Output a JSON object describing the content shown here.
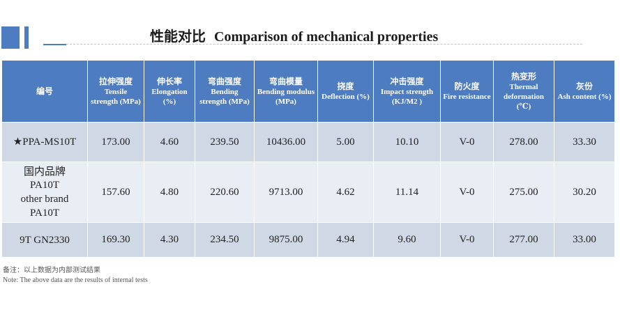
{
  "title": {
    "zh": "性能对比",
    "en": "Comparison of mechanical properties"
  },
  "table": {
    "headers": [
      {
        "zh": "编号",
        "en": ""
      },
      {
        "zh": "拉伸强度",
        "en": "Tensile strength (MPa)"
      },
      {
        "zh": "伸长率",
        "en": "Elongation (%)"
      },
      {
        "zh": "弯曲强度",
        "en": "Bending strength (MPa)"
      },
      {
        "zh": "弯曲模量",
        "en": "Bending modulus (MPa)"
      },
      {
        "zh": "挠度",
        "en": "Deflection (%)"
      },
      {
        "zh": "冲击强度",
        "en": "Impact strength (KJ/M2 )"
      },
      {
        "zh": "防火度",
        "en": "Fire resistance"
      },
      {
        "zh": "热变形",
        "en": "Thermal deformation (℃)"
      },
      {
        "zh": "灰份",
        "en": "Ash content (%)"
      }
    ],
    "rows": [
      {
        "name": [
          "★PPA-MS10T"
        ],
        "values": [
          "173.00",
          "4.60",
          "239.50",
          "10436.00",
          "5.00",
          "10.10",
          "V-0",
          "278.00",
          "33.30"
        ]
      },
      {
        "name": [
          "国内品牌",
          "PA10T",
          "other brand",
          "PA10T"
        ],
        "values": [
          "157.60",
          "4.80",
          "220.60",
          "9713.00",
          "4.62",
          "11.14",
          "V-0",
          "275.00",
          "30.20"
        ]
      },
      {
        "name": [
          "9T GN2330"
        ],
        "values": [
          "169.30",
          "4.30",
          "234.50",
          "9875.00",
          "4.94",
          "9.60",
          "V-0",
          "277.00",
          "33.00"
        ]
      }
    ]
  },
  "notes": {
    "zh": "备注：以上数据为内部测试结果",
    "en": "Note: The above data are the results of internal tests"
  },
  "colors": {
    "header_bg": "#4d7cc0",
    "row_dark": "#d0d7e5",
    "row_light": "#e9edf4"
  }
}
